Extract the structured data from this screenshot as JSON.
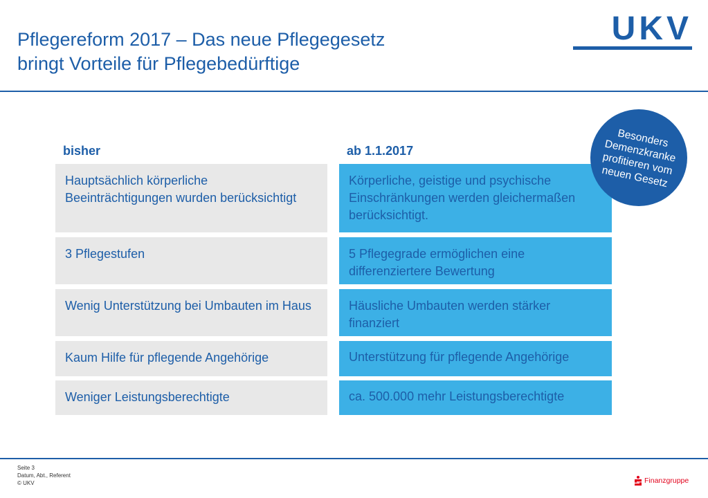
{
  "header": {
    "title_line1": "Pflegereform 2017 – Das neue Pflegegesetz",
    "title_line2": "bringt Vorteile für Pflegebedürftige",
    "logo_text": "UKV"
  },
  "columns": {
    "left_header": "bisher",
    "right_header": "ab 1.1.2017"
  },
  "rows": [
    {
      "left": "Hauptsächlich körperliche Beeinträchtigungen wurden berücksichtigt",
      "right": "Körperliche, geistige und psychische Einschränkungen werden gleichermaßen berücksichtigt."
    },
    {
      "left": "3 Pflegestufen",
      "right": "5 Pflegegrade ermöglichen eine differenziertere Bewertung"
    },
    {
      "left": "Wenig Unterstützung bei Umbauten im Haus",
      "right": "Häusliche Umbauten werden stärker finanziert"
    },
    {
      "left": "Kaum Hilfe für pflegende Angehörige",
      "right": "Unterstützung für pflegende Angehörige"
    },
    {
      "left": "Weniger Leistungsberechtigte",
      "right": "ca. 500.000 mehr Leistungsberechtigte"
    }
  ],
  "badge": {
    "line1": "Besonders",
    "line2": "Demenzkranke",
    "line3": "profitieren vom",
    "line4": "neuen Gesetz"
  },
  "footer": {
    "page": "Seite 3",
    "meta": "Datum, Abt., Referent",
    "copyright": "© UKV",
    "brand": "Finanzgruppe",
    "brand_icon": "sparkasse-s-icon"
  },
  "colors": {
    "primary_blue": "#1d5ea8",
    "light_blue": "#3cb0e6",
    "light_gray": "#e8e8e8",
    "brand_red": "#e2001a"
  }
}
